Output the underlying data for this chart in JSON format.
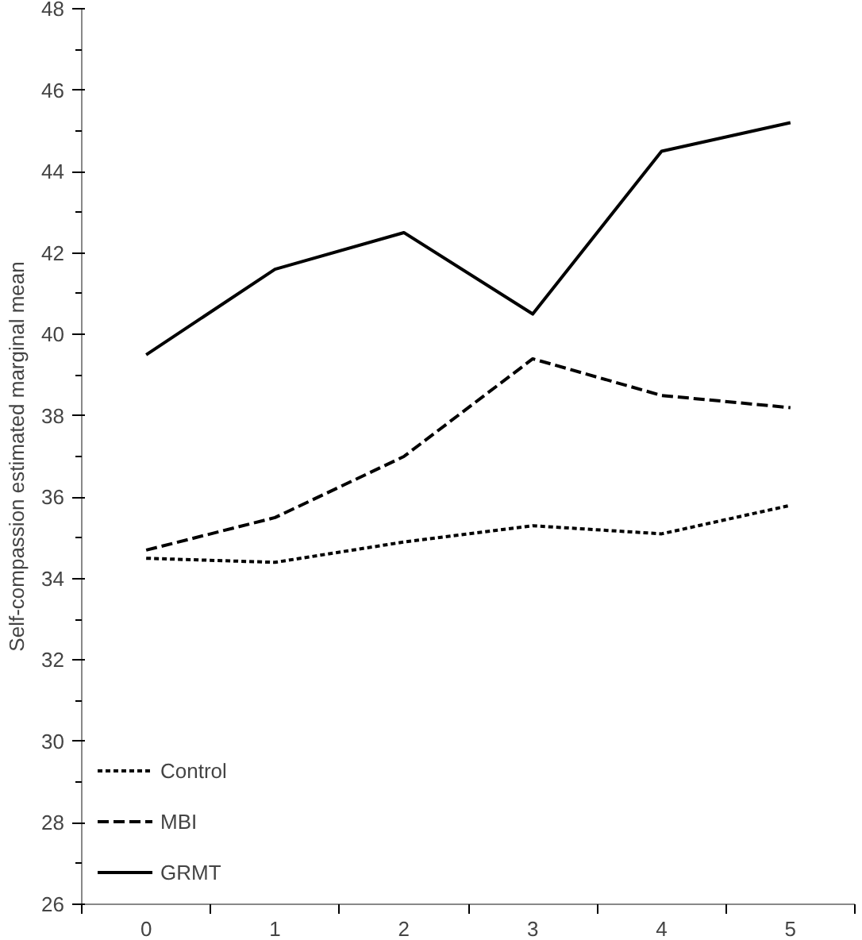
{
  "chart_data": {
    "type": "line",
    "ylabel": "Self-compassion estimated marginal mean",
    "categories": [
      "0",
      "1",
      "2",
      "3",
      "4",
      "5"
    ],
    "ylim": [
      26,
      48
    ],
    "yticks": [
      26,
      {
        "value": 27,
        "label": null
      },
      28,
      {
        "value": 29,
        "label": null
      },
      30,
      {
        "value": 31,
        "label": null
      },
      32,
      {
        "value": 33,
        "label": null
      },
      34,
      {
        "value": 35,
        "label": null
      },
      36,
      {
        "value": 37,
        "label": null
      },
      38,
      {
        "value": 39,
        "label": null
      },
      40,
      {
        "value": 41,
        "label": null
      },
      42,
      {
        "value": 43,
        "label": null
      },
      44,
      {
        "value": 45,
        "label": null
      },
      46,
      {
        "value": 47,
        "label": null
      },
      48
    ],
    "grid": false,
    "legend": "bottom left",
    "series": [
      {
        "name": "Control",
        "color": "#000000",
        "line_style": "dotted",
        "values": [
          34.5,
          34.4,
          34.9,
          35.3,
          35.1,
          35.8
        ]
      },
      {
        "name": "MBI",
        "color": "#000000",
        "line_style": "dashed",
        "values": [
          34.7,
          35.5,
          37.0,
          39.4,
          38.5,
          38.2
        ]
      },
      {
        "name": "GRMT",
        "color": "#000000",
        "line_style": "solid",
        "values": [
          39.5,
          41.6,
          42.5,
          40.5,
          44.5,
          45.2
        ]
      }
    ]
  }
}
